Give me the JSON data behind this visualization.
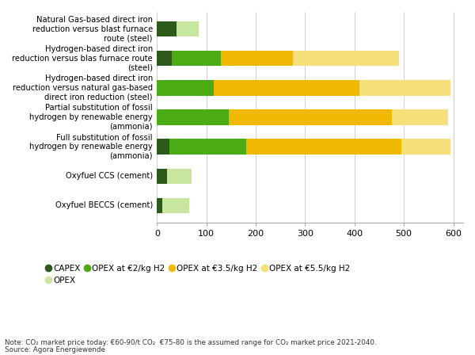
{
  "categories": [
    "Natural Gas-based direct iron\nreduction versus blast furnace\nroute (steel)",
    "Hydrogen-based direct iron\nreduction versus blas furnace route\n(steel)",
    "Hydrogen-based direct iron\nreduction versus natural gas-based\ndirect iron reduction (steel)",
    "Partial substitution of fossil\nhydrogen by renewable energy\n(ammonia)",
    "Full substitution of fossil\nhydrogen by renewable energy\n(ammonia)",
    "Oxyfuel CCS (cement)",
    "Oxyfuel BECCS (cement)"
  ],
  "capex": [
    40,
    30,
    0,
    0,
    25,
    20,
    10
  ],
  "opex": [
    45,
    0,
    0,
    0,
    0,
    50,
    55
  ],
  "opex_2": [
    0,
    100,
    115,
    145,
    155,
    0,
    0
  ],
  "opex_35": [
    0,
    145,
    295,
    330,
    315,
    0,
    0
  ],
  "opex_55": [
    0,
    215,
    185,
    115,
    100,
    0,
    0
  ],
  "colors": {
    "capex": "#2d5a1b",
    "opex": "#c8e6a0",
    "opex_2": "#4aab14",
    "opex_35": "#f0b800",
    "opex_55": "#f5e07a"
  },
  "legend_labels": [
    "CAPEX",
    "OPEX",
    "OPEX at €2/kg H2",
    "OPEX at €3.5/kg H2",
    "OPEX at €5.5/kg H2"
  ],
  "xlim": [
    0,
    620
  ],
  "xticks": [
    0,
    100,
    200,
    300,
    400,
    500,
    600
  ],
  "note": "Note: CO₂ market price today: €60-90/t CO₂  €75-80 is the assumed range for CO₂ market price 2021-2040.",
  "source": "Source: Agora Energiewende",
  "bar_height": 0.52,
  "figsize": [
    6.0,
    4.48
  ],
  "dpi": 100
}
